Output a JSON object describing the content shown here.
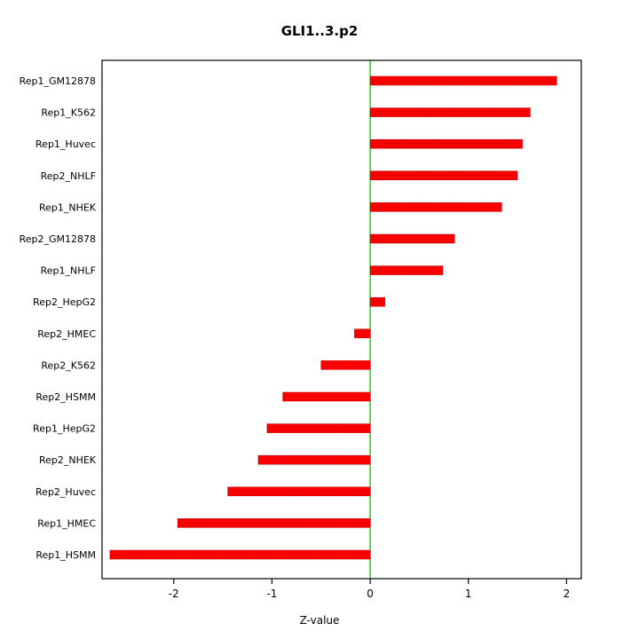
{
  "chart_data": {
    "type": "bar",
    "orientation": "horizontal",
    "title": "GLI1..3.p2",
    "xlabel": "Z-value",
    "ylabel": "",
    "categories": [
      "Rep1_GM12878",
      "Rep1_K562",
      "Rep1_Huvec",
      "Rep2_NHLF",
      "Rep1_NHEK",
      "Rep2_GM12878",
      "Rep1_NHLF",
      "Rep2_HepG2",
      "Rep2_HMEC",
      "Rep2_K562",
      "Rep2_HSMM",
      "Rep1_HepG2",
      "Rep2_NHEK",
      "Rep2_Huvec",
      "Rep1_HMEC",
      "Rep1_HSMM"
    ],
    "values": [
      1.9,
      1.63,
      1.55,
      1.5,
      1.34,
      0.86,
      0.74,
      0.15,
      -0.16,
      -0.5,
      -0.89,
      -1.05,
      -1.14,
      -1.45,
      -1.96,
      -2.65
    ],
    "xlim": [
      -2.73,
      2.15
    ],
    "xticks": [
      -2,
      -1,
      0,
      1,
      2
    ],
    "grid": false,
    "zero_line": true,
    "legend": null,
    "colors": {
      "bar_fill": "#FF0000",
      "bar_dot": "#BB0000",
      "zero_line": "#00CC00",
      "axis": "#000000",
      "background": "#FFFFFF"
    }
  }
}
